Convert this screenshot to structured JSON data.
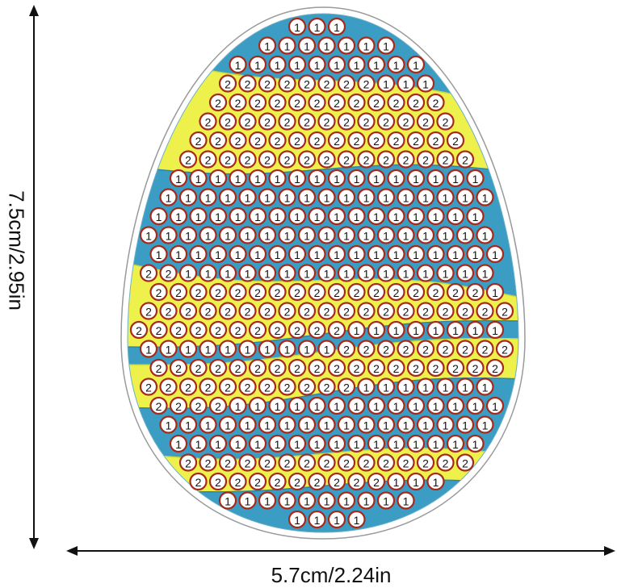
{
  "dimensions": {
    "height_label": "7.5cm/2.95in",
    "width_label": "5.7cm/2.24in"
  },
  "pattern": {
    "band_order_top_to_bottom": [
      "blue",
      "yellow",
      "blue",
      "yellow",
      "blue",
      "yellow",
      "blue",
      "yellow",
      "blue"
    ],
    "dot_labels": {
      "blue": "1",
      "yellow": "2"
    }
  },
  "colors": {
    "blue": "#3b9cc4",
    "yellow": "#eef04c",
    "dot_ring": "#a52a1c",
    "outline": "#9a9a9a"
  }
}
